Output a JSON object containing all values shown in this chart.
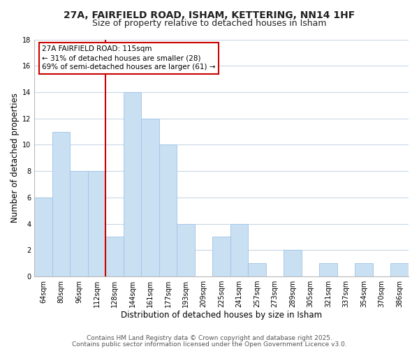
{
  "title1": "27A, FAIRFIELD ROAD, ISHAM, KETTERING, NN14 1HF",
  "title2": "Size of property relative to detached houses in Isham",
  "xlabel": "Distribution of detached houses by size in Isham",
  "ylabel": "Number of detached properties",
  "categories": [
    "64sqm",
    "80sqm",
    "96sqm",
    "112sqm",
    "128sqm",
    "144sqm",
    "161sqm",
    "177sqm",
    "193sqm",
    "209sqm",
    "225sqm",
    "241sqm",
    "257sqm",
    "273sqm",
    "289sqm",
    "305sqm",
    "321sqm",
    "337sqm",
    "354sqm",
    "370sqm",
    "386sqm"
  ],
  "values": [
    6,
    11,
    8,
    8,
    3,
    14,
    12,
    10,
    4,
    0,
    3,
    4,
    1,
    0,
    2,
    0,
    1,
    0,
    1,
    0,
    1
  ],
  "bar_color": "#c9dff2",
  "bar_edge_color": "#a0c4e8",
  "vline_color": "#cc0000",
  "vline_x_index": 3,
  "ylim": [
    0,
    18
  ],
  "yticks": [
    0,
    2,
    4,
    6,
    8,
    10,
    12,
    14,
    16,
    18
  ],
  "annotation_line1": "27A FAIRFIELD ROAD: 115sqm",
  "annotation_line2": "← 31% of detached houses are smaller (28)",
  "annotation_line3": "69% of semi-detached houses are larger (61) →",
  "annotation_box_edge": "#cc0000",
  "footer1": "Contains HM Land Registry data © Crown copyright and database right 2025.",
  "footer2": "Contains public sector information licensed under the Open Government Licence v3.0.",
  "background_color": "#ffffff",
  "grid_color": "#c8d8e8",
  "title1_fontsize": 10,
  "title2_fontsize": 9,
  "axis_label_fontsize": 8.5,
  "tick_fontsize": 7,
  "annotation_fontsize": 7.5,
  "footer_fontsize": 6.5
}
